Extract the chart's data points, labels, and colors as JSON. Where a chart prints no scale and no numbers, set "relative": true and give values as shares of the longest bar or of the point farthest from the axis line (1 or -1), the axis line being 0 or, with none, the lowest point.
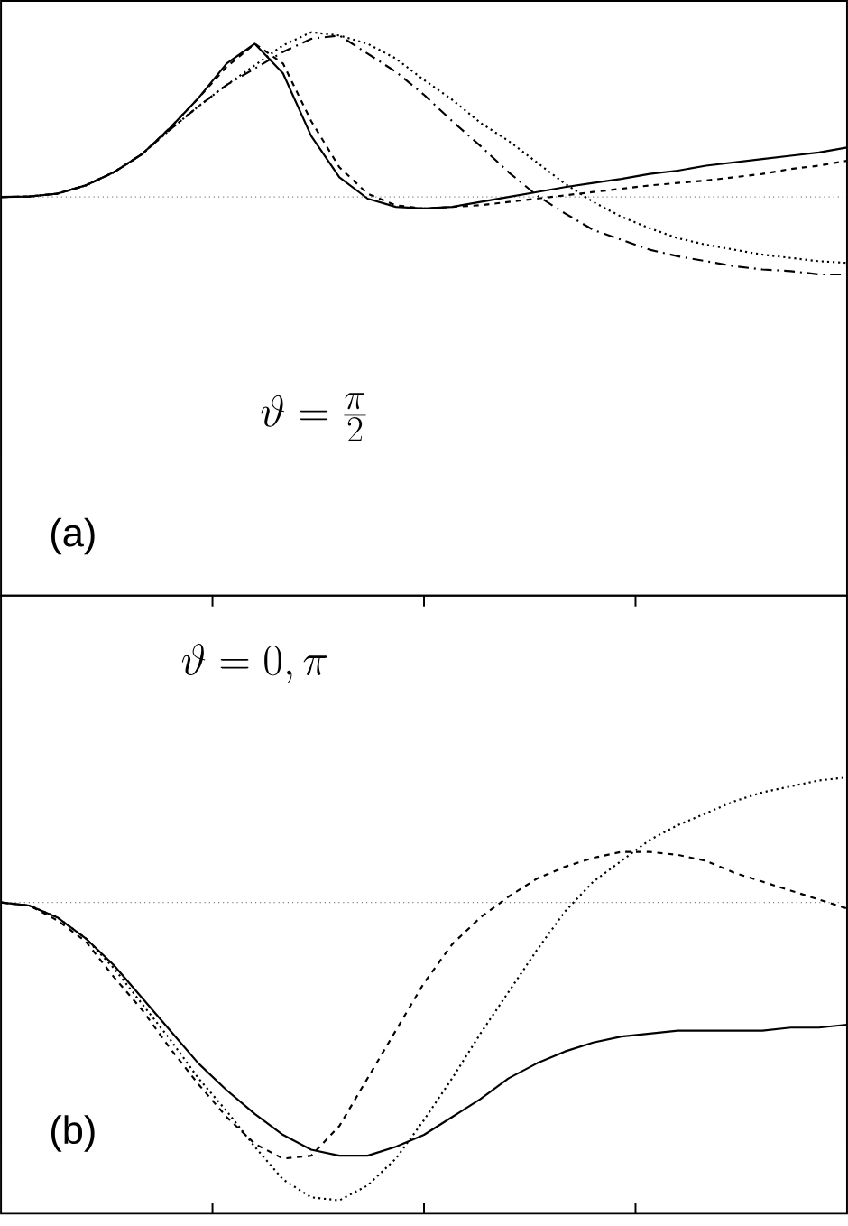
{
  "chart_data": [
    {
      "type": "line",
      "relative": true,
      "categories": [
        null,
        null,
        null,
        null,
        null,
        null,
        null,
        null,
        null,
        null,
        null,
        null,
        null,
        null,
        null,
        null,
        null,
        null,
        null,
        null,
        null,
        null,
        null,
        null,
        null,
        null,
        null,
        null,
        null,
        null,
        null
      ],
      "series": [
        {
          "color": "#000000",
          "line_style": "solid",
          "values": [
            0,
            0.003,
            0.02,
            0.07,
            0.15,
            0.26,
            0.42,
            0.6,
            0.81,
            0.93,
            0.75,
            0.37,
            0.12,
            -0.01,
            -0.06,
            -0.07,
            -0.06,
            -0.03,
            0,
            0.03,
            0.06,
            0.085,
            0.11,
            0.14,
            0.16,
            0.19,
            0.21,
            0.23,
            0.25,
            0.27,
            0.3
          ]
        },
        {
          "color": "#000000",
          "line_style": "dashed",
          "values": [
            0,
            0.003,
            0.02,
            0.07,
            0.15,
            0.26,
            0.42,
            0.6,
            0.79,
            0.93,
            0.81,
            0.46,
            0.18,
            0.02,
            -0.05,
            -0.07,
            -0.06,
            -0.05,
            -0.03,
            -0.01,
            0.01,
            0.03,
            0.05,
            0.07,
            0.085,
            0.1,
            0.12,
            0.14,
            0.17,
            0.19,
            0.22
          ]
        },
        {
          "color": "#000000",
          "line_style": "dashdot",
          "values": [
            0,
            0.003,
            0.02,
            0.07,
            0.15,
            0.26,
            0.41,
            0.55,
            0.68,
            0.78,
            0.88,
            0.96,
            0.98,
            0.87,
            0.76,
            0.62,
            0.46,
            0.31,
            0.15,
            0.01,
            -0.1,
            -0.2,
            -0.26,
            -0.32,
            -0.36,
            -0.39,
            -0.42,
            -0.44,
            -0.45,
            -0.47,
            -0.47
          ]
        },
        {
          "color": "#000000",
          "line_style": "dotted",
          "values": [
            0,
            0.003,
            0.02,
            0.07,
            0.15,
            0.26,
            0.41,
            0.55,
            0.68,
            0.8,
            0.92,
            1,
            0.98,
            0.93,
            0.84,
            0.71,
            0.59,
            0.45,
            0.34,
            0.21,
            0.08,
            -0.03,
            -0.12,
            -0.19,
            -0.25,
            -0.29,
            -0.32,
            -0.35,
            -0.37,
            -0.39,
            -0.4
          ]
        }
      ],
      "ref_lines": [
        {
          "axis": "y",
          "value": 0,
          "line_style": "dotted",
          "color": "#808080"
        }
      ],
      "annotations": [
        "\\vartheta = \\frac{\\pi}{2}",
        "(a)"
      ]
    },
    {
      "type": "line",
      "relative": true,
      "categories": [
        null,
        null,
        null,
        null,
        null,
        null,
        null,
        null,
        null,
        null,
        null,
        null,
        null,
        null,
        null,
        null,
        null,
        null,
        null,
        null,
        null,
        null,
        null,
        null,
        null,
        null,
        null,
        null,
        null,
        null,
        null
      ],
      "series": [
        {
          "color": "#000000",
          "line_style": "solid",
          "values": [
            0,
            -0.01,
            -0.05,
            -0.12,
            -0.21,
            -0.32,
            -0.43,
            -0.54,
            -0.63,
            -0.71,
            -0.78,
            -0.83,
            -0.85,
            -0.85,
            -0.82,
            -0.78,
            -0.72,
            -0.66,
            -0.59,
            -0.54,
            -0.5,
            -0.47,
            -0.45,
            -0.44,
            -0.43,
            -0.43,
            -0.43,
            -0.43,
            -0.42,
            -0.42,
            -0.41
          ]
        },
        {
          "color": "#000000",
          "line_style": "dashed",
          "values": [
            0,
            -0.01,
            -0.06,
            -0.13,
            -0.25,
            -0.36,
            -0.49,
            -0.61,
            -0.72,
            -0.81,
            -0.86,
            -0.85,
            -0.75,
            -0.59,
            -0.43,
            -0.27,
            -0.14,
            -0.05,
            0.02,
            0.08,
            0.12,
            0.15,
            0.17,
            0.17,
            0.16,
            0.14,
            0.1,
            0.07,
            0.04,
            0.01,
            -0.02
          ]
        },
        {
          "color": "#000000",
          "line_style": "dotted",
          "values": [
            0,
            -0.01,
            -0.05,
            -0.12,
            -0.22,
            -0.34,
            -0.46,
            -0.59,
            -0.7,
            -0.82,
            -0.93,
            -0.99,
            -1,
            -0.95,
            -0.86,
            -0.73,
            -0.59,
            -0.44,
            -0.3,
            -0.16,
            -0.03,
            0.07,
            0.14,
            0.21,
            0.26,
            0.3,
            0.34,
            0.37,
            0.39,
            0.41,
            0.42
          ]
        }
      ],
      "ref_lines": [
        {
          "axis": "y",
          "value": 0,
          "line_style": "dotted",
          "color": "#808080"
        }
      ],
      "annotations": [
        "\\vartheta = 0,\\pi",
        "(b)"
      ]
    }
  ]
}
